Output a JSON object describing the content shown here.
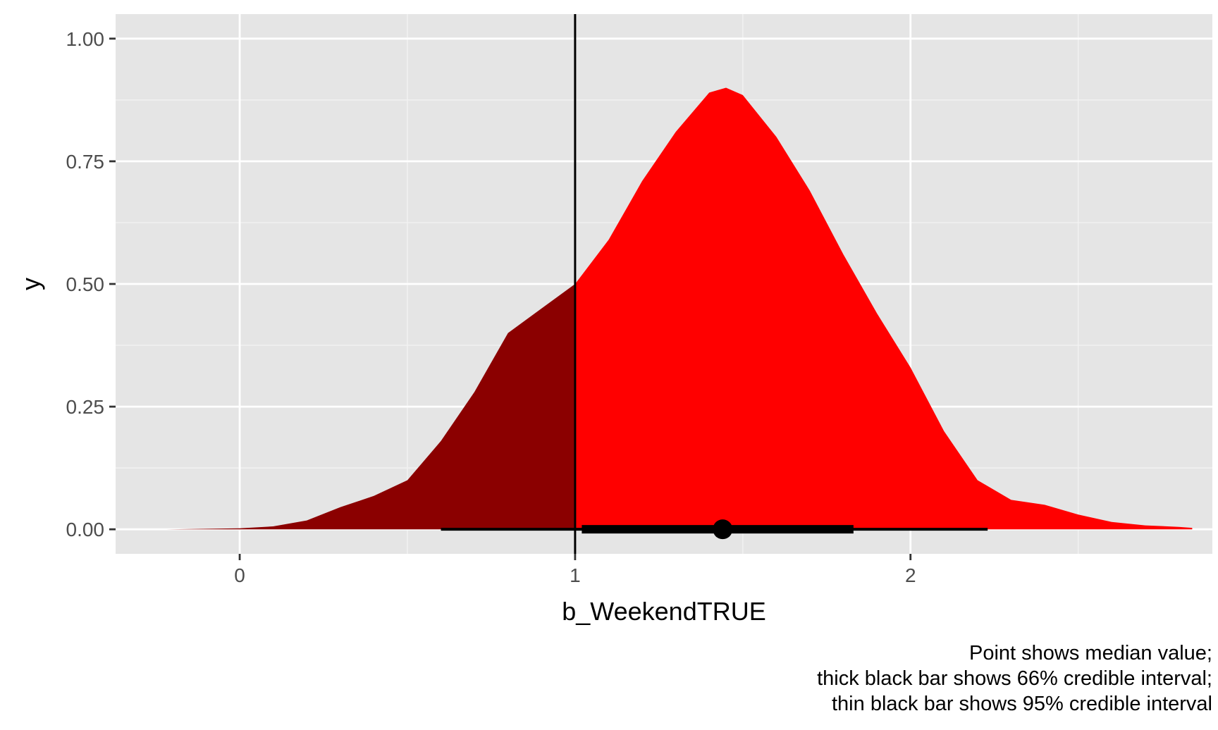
{
  "chart_data": {
    "type": "area",
    "xlabel": "b_WeekendTRUE",
    "ylabel": "y",
    "xlim": [
      -0.37,
      2.9
    ],
    "ylim": [
      -0.05,
      1.05
    ],
    "x_ticks": [
      0,
      1,
      2
    ],
    "x_tick_labels": [
      "0",
      "1",
      "2"
    ],
    "y_ticks": [
      0,
      0.25,
      0.5,
      0.75,
      1
    ],
    "y_tick_labels": [
      "0.00",
      "0.25",
      "0.50",
      "0.75",
      "1.00"
    ],
    "grid": true,
    "panel_background": "#e5e5e5",
    "reference_line_x": 1,
    "density": {
      "x": [
        -0.22,
        0,
        0.1,
        0.2,
        0.3,
        0.4,
        0.5,
        0.6,
        0.7,
        0.8,
        0.9,
        1.0,
        1.1,
        1.2,
        1.3,
        1.4,
        1.45,
        1.5,
        1.6,
        1.7,
        1.8,
        1.9,
        2.0,
        2.1,
        2.2,
        2.3,
        2.4,
        2.5,
        2.6,
        2.7,
        2.8,
        2.84
      ],
      "y": [
        0.0,
        0.002,
        0.006,
        0.018,
        0.045,
        0.068,
        0.1,
        0.18,
        0.28,
        0.4,
        0.45,
        0.5,
        0.59,
        0.71,
        0.81,
        0.89,
        0.9,
        0.885,
        0.8,
        0.69,
        0.56,
        0.44,
        0.33,
        0.2,
        0.1,
        0.06,
        0.05,
        0.03,
        0.015,
        0.008,
        0.005,
        0.003
      ]
    },
    "fill_below_reference": "#8b0000",
    "fill_above_reference": "#ff0000",
    "median": 1.44,
    "interval_66": [
      1.02,
      1.83
    ],
    "interval_95": [
      0.6,
      2.23
    ],
    "caption_lines": [
      "Point shows median value;",
      "thick black bar shows 66% credible interval;",
      "thin black bar shows 95% credible interval"
    ]
  }
}
